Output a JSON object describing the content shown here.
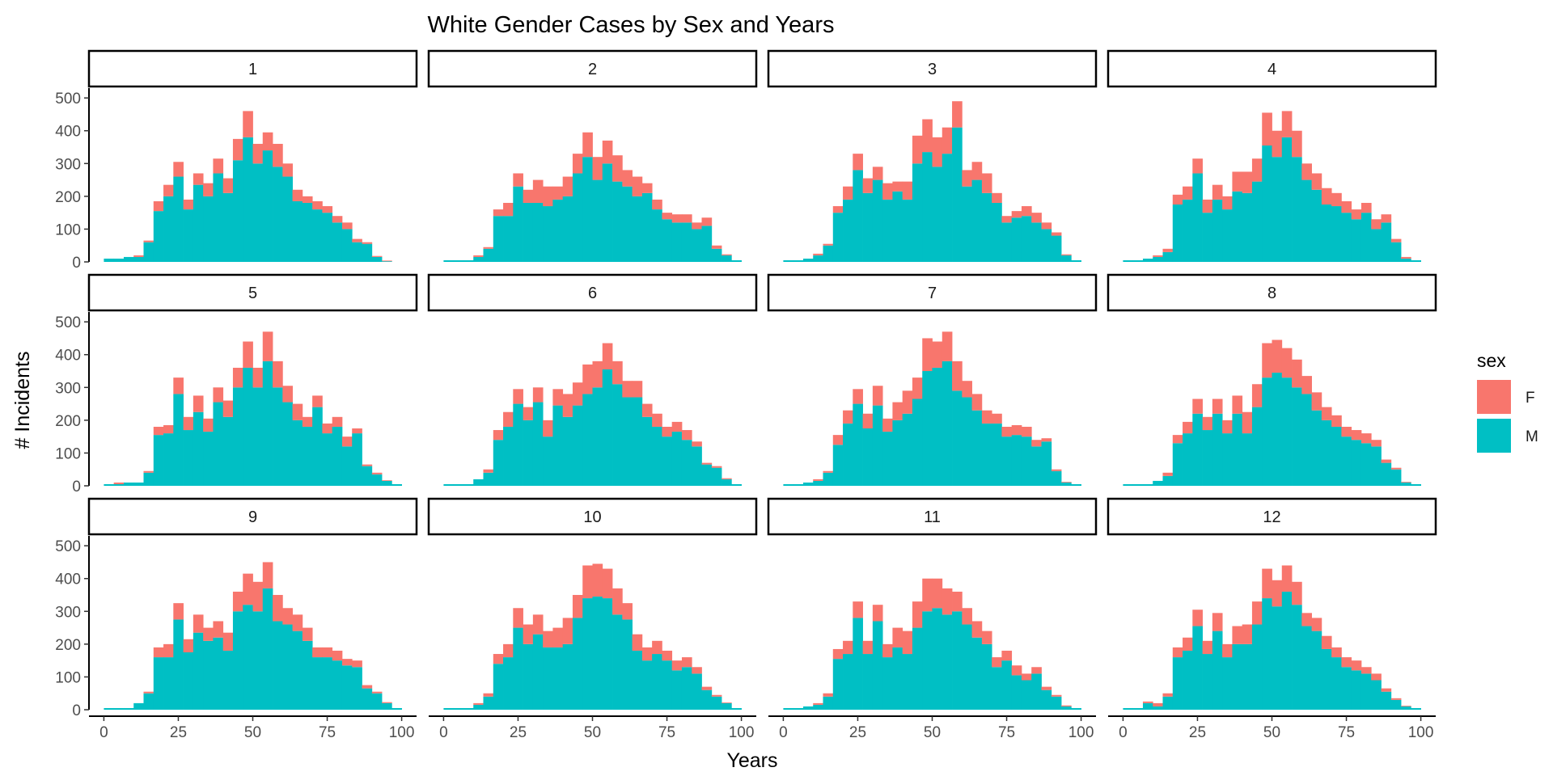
{
  "chart_data": {
    "type": "bar",
    "stacked": true,
    "title": "White Gender Cases by Sex and Years",
    "xlabel": "Years",
    "ylabel": "# Incidents",
    "xlim": [
      -5,
      105
    ],
    "ylim": [
      0,
      530
    ],
    "x_ticks": [
      "0",
      "25",
      "50",
      "75",
      "100"
    ],
    "y_ticks": [
      "0",
      "100",
      "200",
      "300",
      "400",
      "500"
    ],
    "bin_width": 3.33,
    "bin_starts": [
      0,
      3.33,
      6.67,
      10,
      13.33,
      16.67,
      20,
      23.33,
      26.67,
      30,
      33.33,
      36.67,
      40,
      43.33,
      46.67,
      50,
      53.33,
      56.67,
      60,
      63.33,
      66.67,
      70,
      73.33,
      76.67,
      80,
      83.33,
      86.67,
      90,
      93.33,
      96.67
    ],
    "legend": {
      "title": "sex",
      "position": "right",
      "items": [
        {
          "label": "F",
          "color": "#F8766D"
        },
        {
          "label": "M",
          "color": "#00BFC4"
        }
      ]
    },
    "series": [
      {
        "name": "F",
        "color": "#F8766D"
      },
      {
        "name": "M",
        "color": "#00BFC4"
      }
    ],
    "panels": [
      {
        "label": "1",
        "F": [
          0,
          0,
          0,
          5,
          5,
          30,
          35,
          45,
          30,
          35,
          40,
          45,
          45,
          65,
          80,
          60,
          55,
          70,
          40,
          35,
          20,
          25,
          20,
          20,
          20,
          10,
          5,
          3,
          2,
          0
        ],
        "M": [
          10,
          10,
          15,
          15,
          60,
          155,
          200,
          260,
          160,
          235,
          200,
          270,
          210,
          310,
          380,
          300,
          340,
          290,
          260,
          185,
          180,
          160,
          150,
          120,
          100,
          60,
          55,
          15,
          2,
          0
        ]
      },
      {
        "label": "2",
        "F": [
          0,
          0,
          0,
          5,
          5,
          20,
          40,
          40,
          40,
          70,
          60,
          40,
          60,
          60,
          75,
          70,
          70,
          80,
          50,
          60,
          30,
          30,
          20,
          25,
          25,
          20,
          25,
          10,
          3,
          0
        ],
        "M": [
          5,
          5,
          5,
          15,
          40,
          140,
          140,
          230,
          180,
          180,
          170,
          190,
          200,
          270,
          320,
          250,
          300,
          245,
          230,
          200,
          210,
          160,
          130,
          120,
          120,
          100,
          110,
          40,
          20,
          5
        ]
      },
      {
        "label": "3",
        "F": [
          0,
          0,
          0,
          5,
          5,
          20,
          40,
          50,
          45,
          40,
          50,
          30,
          55,
          85,
          100,
          90,
          80,
          80,
          50,
          55,
          60,
          30,
          20,
          20,
          30,
          30,
          20,
          10,
          3,
          0
        ],
        "M": [
          5,
          5,
          10,
          20,
          50,
          150,
          190,
          280,
          210,
          250,
          190,
          215,
          190,
          300,
          335,
          290,
          330,
          410,
          230,
          250,
          210,
          180,
          120,
          135,
          140,
          120,
          100,
          80,
          20,
          5
        ]
      },
      {
        "label": "4",
        "F": [
          0,
          0,
          0,
          5,
          10,
          30,
          40,
          45,
          40,
          45,
          40,
          60,
          65,
          70,
          100,
          80,
          80,
          80,
          50,
          50,
          50,
          40,
          35,
          30,
          30,
          30,
          25,
          10,
          5,
          0
        ],
        "M": [
          5,
          5,
          10,
          15,
          30,
          175,
          190,
          270,
          150,
          190,
          160,
          215,
          210,
          245,
          355,
          320,
          380,
          320,
          250,
          220,
          175,
          170,
          150,
          130,
          150,
          100,
          120,
          60,
          10,
          5
        ]
      },
      {
        "label": "5",
        "F": [
          0,
          5,
          0,
          0,
          5,
          25,
          25,
          50,
          40,
          50,
          40,
          45,
          50,
          60,
          80,
          60,
          90,
          80,
          50,
          50,
          30,
          35,
          30,
          30,
          30,
          15,
          5,
          5,
          2,
          0
        ],
        "M": [
          5,
          5,
          10,
          10,
          40,
          155,
          160,
          280,
          170,
          225,
          165,
          255,
          210,
          300,
          360,
          300,
          380,
          300,
          255,
          200,
          180,
          240,
          160,
          180,
          120,
          160,
          60,
          35,
          15,
          5
        ]
      },
      {
        "label": "6",
        "F": [
          0,
          0,
          0,
          0,
          10,
          30,
          45,
          45,
          40,
          45,
          50,
          50,
          70,
          70,
          90,
          80,
          80,
          70,
          50,
          50,
          40,
          40,
          30,
          30,
          30,
          15,
          5,
          5,
          3,
          0
        ],
        "M": [
          5,
          5,
          5,
          20,
          40,
          140,
          180,
          250,
          200,
          255,
          150,
          245,
          210,
          245,
          280,
          300,
          355,
          310,
          270,
          270,
          210,
          180,
          150,
          165,
          140,
          120,
          65,
          55,
          20,
          5
        ]
      },
      {
        "label": "7",
        "F": [
          0,
          0,
          0,
          5,
          5,
          30,
          40,
          45,
          45,
          60,
          40,
          55,
          70,
          65,
          100,
          80,
          90,
          90,
          50,
          50,
          40,
          30,
          30,
          30,
          30,
          20,
          10,
          5,
          2,
          0
        ],
        "M": [
          5,
          5,
          10,
          15,
          40,
          125,
          190,
          250,
          175,
          245,
          165,
          200,
          220,
          265,
          350,
          360,
          380,
          290,
          270,
          230,
          190,
          190,
          150,
          155,
          150,
          120,
          135,
          45,
          10,
          5
        ]
      },
      {
        "label": "8",
        "F": [
          0,
          0,
          0,
          0,
          10,
          25,
          35,
          45,
          40,
          45,
          40,
          55,
          65,
          70,
          105,
          100,
          90,
          85,
          55,
          55,
          40,
          35,
          30,
          30,
          30,
          20,
          10,
          5,
          2,
          0
        ],
        "M": [
          5,
          5,
          5,
          15,
          30,
          130,
          160,
          220,
          170,
          220,
          160,
          220,
          160,
          240,
          330,
          345,
          330,
          300,
          280,
          230,
          200,
          180,
          150,
          140,
          130,
          120,
          70,
          50,
          10,
          5
        ]
      },
      {
        "label": "9",
        "F": [
          0,
          0,
          0,
          0,
          5,
          30,
          40,
          50,
          40,
          55,
          40,
          50,
          55,
          60,
          95,
          90,
          80,
          80,
          50,
          50,
          40,
          30,
          30,
          30,
          20,
          20,
          10,
          5,
          3,
          0
        ],
        "M": [
          5,
          5,
          5,
          20,
          50,
          160,
          160,
          275,
          175,
          235,
          210,
          220,
          180,
          300,
          320,
          300,
          370,
          270,
          260,
          240,
          210,
          160,
          160,
          150,
          135,
          130,
          65,
          50,
          20,
          5
        ]
      },
      {
        "label": "10",
        "F": [
          0,
          0,
          0,
          5,
          10,
          30,
          40,
          60,
          60,
          60,
          50,
          60,
          80,
          70,
          100,
          100,
          90,
          80,
          50,
          50,
          40,
          40,
          30,
          30,
          30,
          20,
          10,
          5,
          2,
          0
        ],
        "M": [
          5,
          5,
          5,
          15,
          40,
          140,
          160,
          250,
          200,
          230,
          190,
          190,
          200,
          280,
          340,
          345,
          340,
          290,
          275,
          180,
          150,
          170,
          150,
          120,
          130,
          110,
          60,
          40,
          20,
          5
        ]
      },
      {
        "label": "11",
        "F": [
          0,
          0,
          0,
          5,
          10,
          30,
          40,
          50,
          40,
          50,
          40,
          60,
          70,
          80,
          100,
          90,
          80,
          60,
          50,
          50,
          40,
          30,
          30,
          30,
          20,
          20,
          10,
          5,
          3,
          0
        ],
        "M": [
          5,
          5,
          10,
          15,
          40,
          155,
          170,
          280,
          170,
          270,
          160,
          190,
          170,
          250,
          300,
          310,
          290,
          300,
          260,
          220,
          200,
          130,
          150,
          105,
          90,
          110,
          60,
          40,
          10,
          5
        ]
      },
      {
        "label": "12",
        "F": [
          0,
          0,
          5,
          10,
          10,
          30,
          40,
          50,
          40,
          55,
          40,
          55,
          60,
          70,
          90,
          80,
          80,
          70,
          40,
          40,
          40,
          30,
          30,
          30,
          20,
          20,
          10,
          5,
          2,
          0
        ],
        "M": [
          5,
          5,
          20,
          10,
          40,
          160,
          180,
          255,
          170,
          240,
          160,
          200,
          200,
          260,
          340,
          315,
          360,
          320,
          255,
          240,
          185,
          160,
          130,
          120,
          110,
          90,
          55,
          30,
          10,
          5
        ]
      }
    ]
  }
}
